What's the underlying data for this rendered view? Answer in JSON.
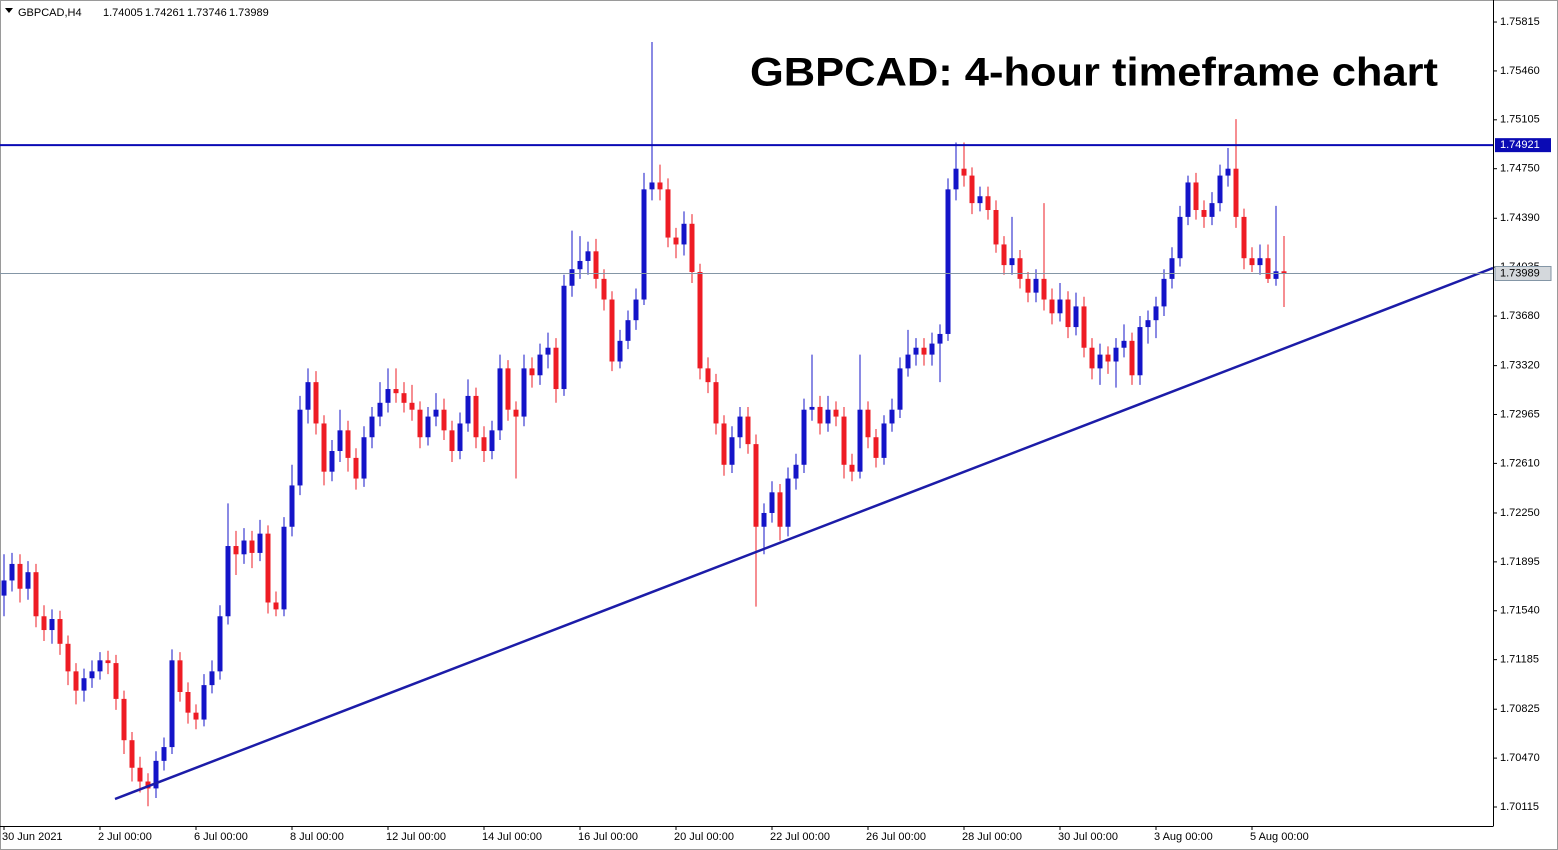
{
  "chart_data": {
    "type": "candlestick",
    "title": "GBPCAD: 4-hour timeframe chart",
    "symbol": "GBPCAD,H4",
    "up_color": "#1414c8",
    "down_color": "#ee1c24",
    "level": 1.74921,
    "level_color": "#0a0ab4",
    "ylim": [
      1.69977,
      1.75975
    ],
    "yticks": [
      1.75815,
      {
        "value": 1.7546,
        "label": "1.75460"
      },
      1.75105,
      {
        "value": 1.7475,
        "label": "1.74750"
      },
      {
        "value": 1.7439,
        "label": "1.74390"
      },
      1.74035,
      {
        "value": 1.7368,
        "label": "1.73680"
      },
      {
        "value": 1.7332,
        "label": "1.73320"
      },
      1.72965,
      {
        "value": 1.7261,
        "label": "1.72610"
      },
      {
        "value": 1.7225,
        "label": "1.72250"
      },
      1.71895,
      {
        "value": 1.7154,
        "label": "1.71540"
      },
      1.71185,
      1.70825,
      {
        "value": 1.7047,
        "label": "1.70470"
      },
      1.70115
    ],
    "categories": [
      "30 Jun 2021",
      null,
      null,
      null,
      null,
      null,
      null,
      null,
      null,
      null,
      null,
      null,
      "2 Jul 00:00",
      null,
      null,
      null,
      null,
      null,
      null,
      null,
      null,
      null,
      null,
      null,
      "6 Jul 00:00",
      null,
      null,
      null,
      null,
      null,
      null,
      null,
      null,
      null,
      null,
      null,
      "8 Jul 00:00",
      null,
      null,
      null,
      null,
      null,
      null,
      null,
      null,
      null,
      null,
      null,
      "12 Jul 00:00",
      null,
      null,
      null,
      null,
      null,
      null,
      null,
      null,
      null,
      null,
      null,
      "14 Jul 00:00",
      null,
      null,
      null,
      null,
      null,
      null,
      null,
      null,
      null,
      null,
      null,
      "16 Jul 00:00",
      null,
      null,
      null,
      null,
      null,
      null,
      null,
      null,
      null,
      null,
      null,
      "20 Jul 00:00",
      null,
      null,
      null,
      null,
      null,
      null,
      null,
      null,
      null,
      null,
      null,
      "22 Jul 00:00",
      null,
      null,
      null,
      null,
      null,
      null,
      null,
      null,
      null,
      null,
      null,
      "26 Jul 00:00",
      null,
      null,
      null,
      null,
      null,
      null,
      null,
      null,
      null,
      null,
      null,
      "28 Jul 00:00",
      null,
      null,
      null,
      null,
      null,
      null,
      null,
      null,
      null,
      null,
      null,
      "30 Jul 00:00",
      null,
      null,
      null,
      null,
      null,
      null,
      null,
      null,
      null,
      null,
      null,
      "3 Aug 00:00",
      null,
      null,
      null,
      null,
      null,
      null,
      null,
      null,
      null,
      null,
      null,
      "5 Aug 00:00",
      null,
      null,
      null,
      null
    ],
    "candles": [
      [
        1.7165,
        1.7195,
        1.715,
        1.7176
      ],
      [
        1.7176,
        1.7196,
        1.7168,
        1.7188
      ],
      [
        1.7188,
        1.7195,
        1.716,
        1.717
      ],
      [
        1.717,
        1.719,
        1.7162,
        1.7182
      ],
      [
        1.7182,
        1.7188,
        1.7142,
        1.715
      ],
      [
        1.715,
        1.7158,
        1.7132,
        1.714
      ],
      [
        1.714,
        1.7155,
        1.713,
        1.7148
      ],
      [
        1.7148,
        1.7154,
        1.7122,
        1.713
      ],
      [
        1.713,
        1.7136,
        1.71,
        1.711
      ],
      [
        1.711,
        1.7116,
        1.7086,
        1.7096
      ],
      [
        1.7096,
        1.7112,
        1.7088,
        1.7105
      ],
      [
        1.7105,
        1.7118,
        1.7098,
        1.711
      ],
      [
        1.711,
        1.7124,
        1.7104,
        1.7118
      ],
      [
        1.7118,
        1.7125,
        1.7108,
        1.7116
      ],
      [
        1.7116,
        1.7122,
        1.7082,
        1.709
      ],
      [
        1.709,
        1.7096,
        1.705,
        1.706
      ],
      [
        1.706,
        1.7066,
        1.703,
        1.704
      ],
      [
        1.704,
        1.7048,
        1.7022,
        1.703
      ],
      [
        1.703,
        1.7036,
        1.7012,
        1.7025
      ],
      [
        1.7025,
        1.7052,
        1.7018,
        1.7045
      ],
      [
        1.7045,
        1.7062,
        1.7038,
        1.7055
      ],
      [
        1.7055,
        1.7126,
        1.705,
        1.7118
      ],
      [
        1.7118,
        1.7124,
        1.7088,
        1.7095
      ],
      [
        1.7095,
        1.7102,
        1.7072,
        1.708
      ],
      [
        1.708,
        1.7086,
        1.7068,
        1.7075
      ],
      [
        1.7075,
        1.7108,
        1.707,
        1.71
      ],
      [
        1.71,
        1.7118,
        1.7094,
        1.711
      ],
      [
        1.711,
        1.7158,
        1.7104,
        1.715
      ],
      [
        1.715,
        1.7232,
        1.7144,
        1.7201
      ],
      [
        1.7201,
        1.7212,
        1.718,
        1.7195
      ],
      [
        1.7195,
        1.7214,
        1.7188,
        1.7205
      ],
      [
        1.7205,
        1.7212,
        1.7185,
        1.7196
      ],
      [
        1.7196,
        1.722,
        1.719,
        1.721
      ],
      [
        1.721,
        1.7216,
        1.7152,
        1.716
      ],
      [
        1.716,
        1.7168,
        1.715,
        1.7155
      ],
      [
        1.7155,
        1.7222,
        1.715,
        1.7215
      ],
      [
        1.7215,
        1.726,
        1.7208,
        1.7245
      ],
      [
        1.7245,
        1.731,
        1.7238,
        1.73
      ],
      [
        1.73,
        1.733,
        1.729,
        1.732
      ],
      [
        1.732,
        1.7328,
        1.7282,
        1.729
      ],
      [
        1.729,
        1.7296,
        1.7245,
        1.7255
      ],
      [
        1.7255,
        1.7278,
        1.7248,
        1.727
      ],
      [
        1.727,
        1.73,
        1.7262,
        1.7285
      ],
      [
        1.7285,
        1.7292,
        1.7255,
        1.7265
      ],
      [
        1.7265,
        1.7272,
        1.7242,
        1.725
      ],
      [
        1.725,
        1.7288,
        1.7244,
        1.728
      ],
      [
        1.728,
        1.7302,
        1.7272,
        1.7295
      ],
      [
        1.7295,
        1.732,
        1.7288,
        1.7305
      ],
      [
        1.7305,
        1.733,
        1.7298,
        1.7315
      ],
      [
        1.7315,
        1.733,
        1.7305,
        1.7312
      ],
      [
        1.7312,
        1.732,
        1.7298,
        1.7305
      ],
      [
        1.7305,
        1.7318,
        1.7292,
        1.73
      ],
      [
        1.73,
        1.7306,
        1.7272,
        1.728
      ],
      [
        1.728,
        1.7302,
        1.7274,
        1.7295
      ],
      [
        1.7295,
        1.7312,
        1.7288,
        1.73
      ],
      [
        1.73,
        1.7308,
        1.7278,
        1.7285
      ],
      [
        1.7285,
        1.7292,
        1.7262,
        1.727
      ],
      [
        1.727,
        1.7298,
        1.7264,
        1.729
      ],
      [
        1.729,
        1.7322,
        1.7284,
        1.731
      ],
      [
        1.731,
        1.7316,
        1.7272,
        1.728
      ],
      [
        1.728,
        1.7288,
        1.7262,
        1.727
      ],
      [
        1.727,
        1.7292,
        1.7264,
        1.7285
      ],
      [
        1.7285,
        1.734,
        1.7278,
        1.733
      ],
      [
        1.733,
        1.7336,
        1.7292,
        1.73
      ],
      [
        1.73,
        1.7306,
        1.725,
        1.7295
      ],
      [
        1.7295,
        1.734,
        1.7288,
        1.733
      ],
      [
        1.733,
        1.7338,
        1.7316,
        1.7325
      ],
      [
        1.7325,
        1.7348,
        1.7318,
        1.734
      ],
      [
        1.734,
        1.7356,
        1.733,
        1.7345
      ],
      [
        1.7345,
        1.7352,
        1.7305,
        1.7315
      ],
      [
        1.7315,
        1.7398,
        1.731,
        1.739
      ],
      [
        1.739,
        1.743,
        1.7382,
        1.7402
      ],
      [
        1.7402,
        1.7426,
        1.7395,
        1.7408
      ],
      [
        1.7408,
        1.7422,
        1.7398,
        1.7415
      ],
      [
        1.7415,
        1.7424,
        1.7388,
        1.7395
      ],
      [
        1.7395,
        1.7402,
        1.7372,
        1.738
      ],
      [
        1.738,
        1.7386,
        1.7328,
        1.7335
      ],
      [
        1.7335,
        1.7358,
        1.733,
        1.735
      ],
      [
        1.735,
        1.7372,
        1.7344,
        1.7365
      ],
      [
        1.7365,
        1.7388,
        1.7358,
        1.738
      ],
      [
        1.738,
        1.7472,
        1.7376,
        1.746
      ],
      [
        1.746,
        1.7567,
        1.7452,
        1.7465
      ],
      [
        1.7465,
        1.7478,
        1.7452,
        1.746
      ],
      [
        1.746,
        1.7468,
        1.7418,
        1.7425
      ],
      [
        1.7425,
        1.7432,
        1.741,
        1.742
      ],
      [
        1.742,
        1.7444,
        1.7412,
        1.7435
      ],
      [
        1.7435,
        1.7442,
        1.7392,
        1.74
      ],
      [
        1.74,
        1.7406,
        1.7322,
        1.733
      ],
      [
        1.733,
        1.7338,
        1.7312,
        1.732
      ],
      [
        1.732,
        1.7326,
        1.7282,
        1.729
      ],
      [
        1.729,
        1.7296,
        1.7252,
        1.726
      ],
      [
        1.726,
        1.7288,
        1.7254,
        1.728
      ],
      [
        1.728,
        1.7302,
        1.7272,
        1.7295
      ],
      [
        1.7295,
        1.7302,
        1.7268,
        1.7275
      ],
      [
        1.7275,
        1.7282,
        1.7157,
        1.7215
      ],
      [
        1.7215,
        1.7232,
        1.7195,
        1.7225
      ],
      [
        1.7225,
        1.7248,
        1.7218,
        1.724
      ],
      [
        1.724,
        1.7246,
        1.7205,
        1.7215
      ],
      [
        1.7215,
        1.7258,
        1.7208,
        1.725
      ],
      [
        1.725,
        1.7268,
        1.7242,
        1.726
      ],
      [
        1.726,
        1.7308,
        1.7254,
        1.73
      ],
      [
        1.73,
        1.734,
        1.7292,
        1.7302
      ],
      [
        1.7302,
        1.731,
        1.7282,
        1.729
      ],
      [
        1.729,
        1.731,
        1.7284,
        1.73
      ],
      [
        1.73,
        1.7306,
        1.7288,
        1.7295
      ],
      [
        1.7295,
        1.7302,
        1.725,
        1.726
      ],
      [
        1.726,
        1.7268,
        1.7248,
        1.7255
      ],
      [
        1.7255,
        1.734,
        1.725,
        1.73
      ],
      [
        1.73,
        1.7306,
        1.7272,
        1.728
      ],
      [
        1.728,
        1.7286,
        1.7258,
        1.7265
      ],
      [
        1.7265,
        1.7296,
        1.726,
        1.729
      ],
      [
        1.729,
        1.7308,
        1.7284,
        1.73
      ],
      [
        1.73,
        1.7338,
        1.7294,
        1.733
      ],
      [
        1.733,
        1.7358,
        1.7324,
        1.734
      ],
      [
        1.734,
        1.7352,
        1.7332,
        1.7345
      ],
      [
        1.7345,
        1.7352,
        1.7332,
        1.734
      ],
      [
        1.734,
        1.7356,
        1.7332,
        1.7348
      ],
      [
        1.7348,
        1.7362,
        1.732,
        1.7355
      ],
      [
        1.7355,
        1.7468,
        1.735,
        1.746
      ],
      [
        1.746,
        1.7494,
        1.7452,
        1.7475
      ],
      [
        1.7475,
        1.7494,
        1.7462,
        1.747
      ],
      [
        1.747,
        1.7476,
        1.7442,
        1.745
      ],
      [
        1.745,
        1.7462,
        1.7444,
        1.7455
      ],
      [
        1.7455,
        1.7462,
        1.7438,
        1.7445
      ],
      [
        1.7445,
        1.7452,
        1.7414,
        1.742
      ],
      [
        1.742,
        1.7426,
        1.7398,
        1.7405
      ],
      [
        1.7405,
        1.744,
        1.7398,
        1.741
      ],
      [
        1.741,
        1.7416,
        1.7388,
        1.7395
      ],
      [
        1.7395,
        1.74,
        1.7378,
        1.7385
      ],
      [
        1.7385,
        1.7402,
        1.7378,
        1.7395
      ],
      [
        1.7395,
        1.745,
        1.7372,
        1.738
      ],
      [
        1.738,
        1.7388,
        1.7362,
        1.737
      ],
      [
        1.737,
        1.7392,
        1.7364,
        1.738
      ],
      [
        1.738,
        1.7386,
        1.7352,
        1.736
      ],
      [
        1.736,
        1.7385,
        1.7354,
        1.7375
      ],
      [
        1.7375,
        1.7382,
        1.7338,
        1.7345
      ],
      [
        1.7345,
        1.7352,
        1.7322,
        1.733
      ],
      [
        1.733,
        1.7348,
        1.7318,
        1.734
      ],
      [
        1.734,
        1.7346,
        1.7326,
        1.7335
      ],
      [
        1.7335,
        1.7352,
        1.7316,
        1.7345
      ],
      [
        1.7345,
        1.7362,
        1.7338,
        1.735
      ],
      [
        1.735,
        1.7356,
        1.7318,
        1.7325
      ],
      [
        1.7325,
        1.7368,
        1.7318,
        1.736
      ],
      [
        1.736,
        1.7372,
        1.7348,
        1.7365
      ],
      [
        1.7365,
        1.7382,
        1.7352,
        1.7375
      ],
      [
        1.7375,
        1.7402,
        1.7368,
        1.7395
      ],
      [
        1.7395,
        1.7418,
        1.7388,
        1.741
      ],
      [
        1.741,
        1.7448,
        1.7404,
        1.744
      ],
      [
        1.744,
        1.747,
        1.7434,
        1.7465
      ],
      [
        1.7465,
        1.7472,
        1.7438,
        1.7445
      ],
      [
        1.7445,
        1.7452,
        1.7432,
        1.744
      ],
      [
        1.744,
        1.7458,
        1.7434,
        1.745
      ],
      [
        1.745,
        1.7478,
        1.7444,
        1.747
      ],
      [
        1.747,
        1.749,
        1.7462,
        1.7475
      ],
      [
        1.7475,
        1.7511,
        1.7432,
        1.744
      ],
      [
        1.744,
        1.7446,
        1.7402,
        1.741
      ],
      [
        1.741,
        1.7418,
        1.74,
        1.7405
      ],
      [
        1.7405,
        1.742,
        1.7398,
        1.741
      ],
      [
        1.741,
        1.742,
        1.7392,
        1.7395
      ],
      [
        1.7395,
        1.7448,
        1.739,
        1.74005
      ],
      [
        1.74005,
        1.74261,
        1.73746,
        1.73989
      ]
    ]
  }
}
